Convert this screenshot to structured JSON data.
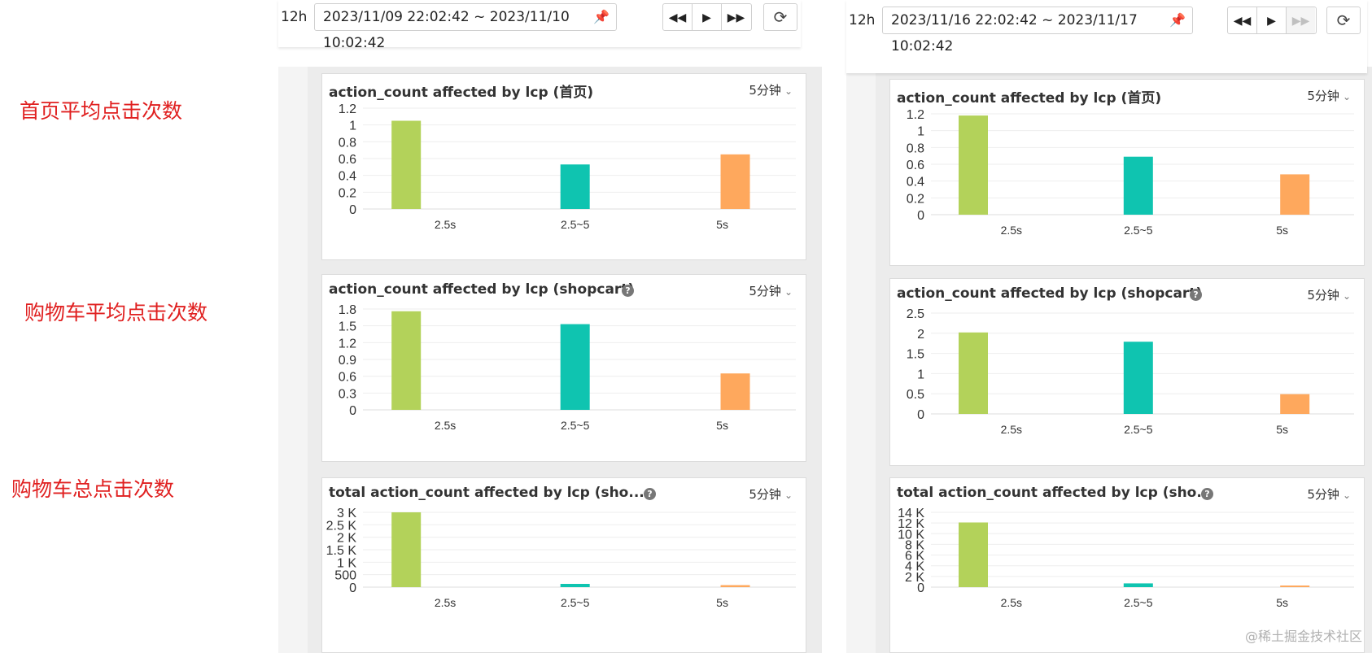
{
  "labels": {
    "home_avg": "首页平均点击次数",
    "cart_avg": "购物车平均点击次数",
    "cart_total": "购物车总点击次数"
  },
  "left": {
    "toolbar": {
      "prefix": "12h",
      "range": "2023/11/09 22:02:42 ~ 2023/11/10 10:02:42"
    }
  },
  "right": {
    "toolbar": {
      "prefix": "12h",
      "range": "2023/11/16 22:02:42 ~ 2023/11/17 10:02:42"
    }
  },
  "watermark": "@稀土掘金技术社区",
  "colors": {
    "green": "#b3d25a",
    "teal": "#0fc4b0",
    "orange": "#fea85d",
    "label_red": "#e02020"
  },
  "chart_data": [
    {
      "id": "left-home",
      "type": "bar",
      "title": "action_count affected by lcp (首页)",
      "interval": "5分钟",
      "categories": [
        "2.5s",
        "2.5~5",
        "5s"
      ],
      "values": [
        1.05,
        0.53,
        0.65
      ],
      "yticks": [
        "0",
        "0.2",
        "0.4",
        "0.6",
        "0.8",
        "1",
        "1.2"
      ],
      "ylim": [
        0,
        1.2
      ],
      "help": false
    },
    {
      "id": "left-cart",
      "type": "bar",
      "title": "action_count affected by lcp (shopcart)",
      "interval": "5分钟",
      "categories": [
        "2.5s",
        "2.5~5",
        "5s"
      ],
      "values": [
        1.76,
        1.53,
        0.65
      ],
      "yticks": [
        "0",
        "0.3",
        "0.6",
        "0.9",
        "1.2",
        "1.5",
        "1.8"
      ],
      "ylim": [
        0,
        1.8
      ],
      "help": true
    },
    {
      "id": "left-total",
      "type": "bar",
      "title": "total action_count affected by lcp (sho...",
      "interval": "5分钟",
      "categories": [
        "2.5s",
        "2.5~5",
        "5s"
      ],
      "values": [
        3000,
        130,
        80
      ],
      "yticks": [
        "0",
        "500",
        "1 K",
        "1.5 K",
        "2 K",
        "2.5 K",
        "3 K"
      ],
      "ylim": [
        0,
        3000
      ],
      "help": true
    },
    {
      "id": "right-home",
      "type": "bar",
      "title": "action_count affected by lcp (首页)",
      "interval": "5分钟",
      "categories": [
        "2.5s",
        "2.5~5",
        "5s"
      ],
      "values": [
        1.18,
        0.69,
        0.48
      ],
      "yticks": [
        "0",
        "0.2",
        "0.4",
        "0.6",
        "0.8",
        "1",
        "1.2"
      ],
      "ylim": [
        0,
        1.2
      ],
      "help": false
    },
    {
      "id": "right-cart",
      "type": "bar",
      "title": "action_count affected by lcp (shopcart)",
      "interval": "5分钟",
      "categories": [
        "2.5s",
        "2.5~5",
        "5s"
      ],
      "values": [
        2.02,
        1.79,
        0.49
      ],
      "yticks": [
        "0",
        "0.5",
        "1",
        "1.5",
        "2",
        "2.5"
      ],
      "ylim": [
        0,
        2.5
      ],
      "help": true
    },
    {
      "id": "right-total",
      "type": "bar",
      "title": "total action_count affected by lcp (sho...",
      "interval": "5分钟",
      "categories": [
        "2.5s",
        "2.5~5",
        "5s"
      ],
      "values": [
        12100,
        700,
        300
      ],
      "yticks": [
        "0",
        "2 K",
        "4 K",
        "6 K",
        "8 K",
        "10 K",
        "12 K",
        "14 K"
      ],
      "ylim": [
        0,
        14000
      ],
      "help": true
    }
  ]
}
